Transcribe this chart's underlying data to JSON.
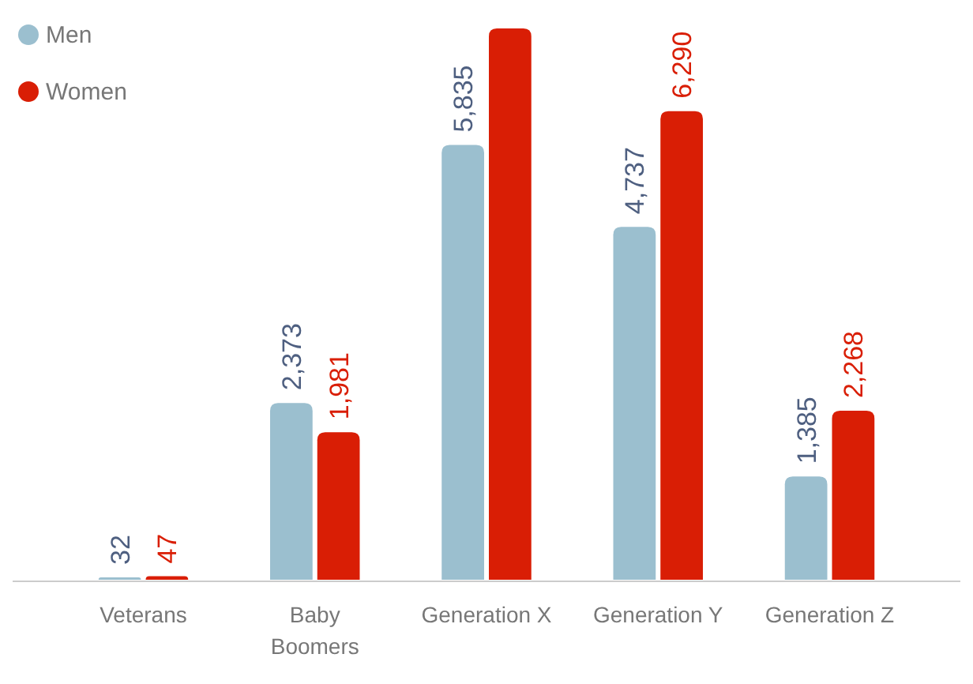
{
  "chart_data": {
    "type": "bar",
    "categories": [
      "Veterans",
      "Baby Boomers",
      "Generation X",
      "Generation Y",
      "Generation Z"
    ],
    "series": [
      {
        "name": "Men",
        "color": "#9bbfcf",
        "values": [
          32,
          2373,
          5835,
          4737,
          1385
        ],
        "value_labels": [
          "32",
          "2,373",
          "5,835",
          "4,737",
          "1,385"
        ]
      },
      {
        "name": "Women",
        "color": "#d91e05",
        "values": [
          47,
          1981,
          7400,
          6290,
          2268
        ],
        "value_labels": [
          "47",
          "1,981",
          null,
          "6,290",
          "2,268"
        ]
      }
    ],
    "legend": "top left",
    "tick_labels": "x"
  }
}
